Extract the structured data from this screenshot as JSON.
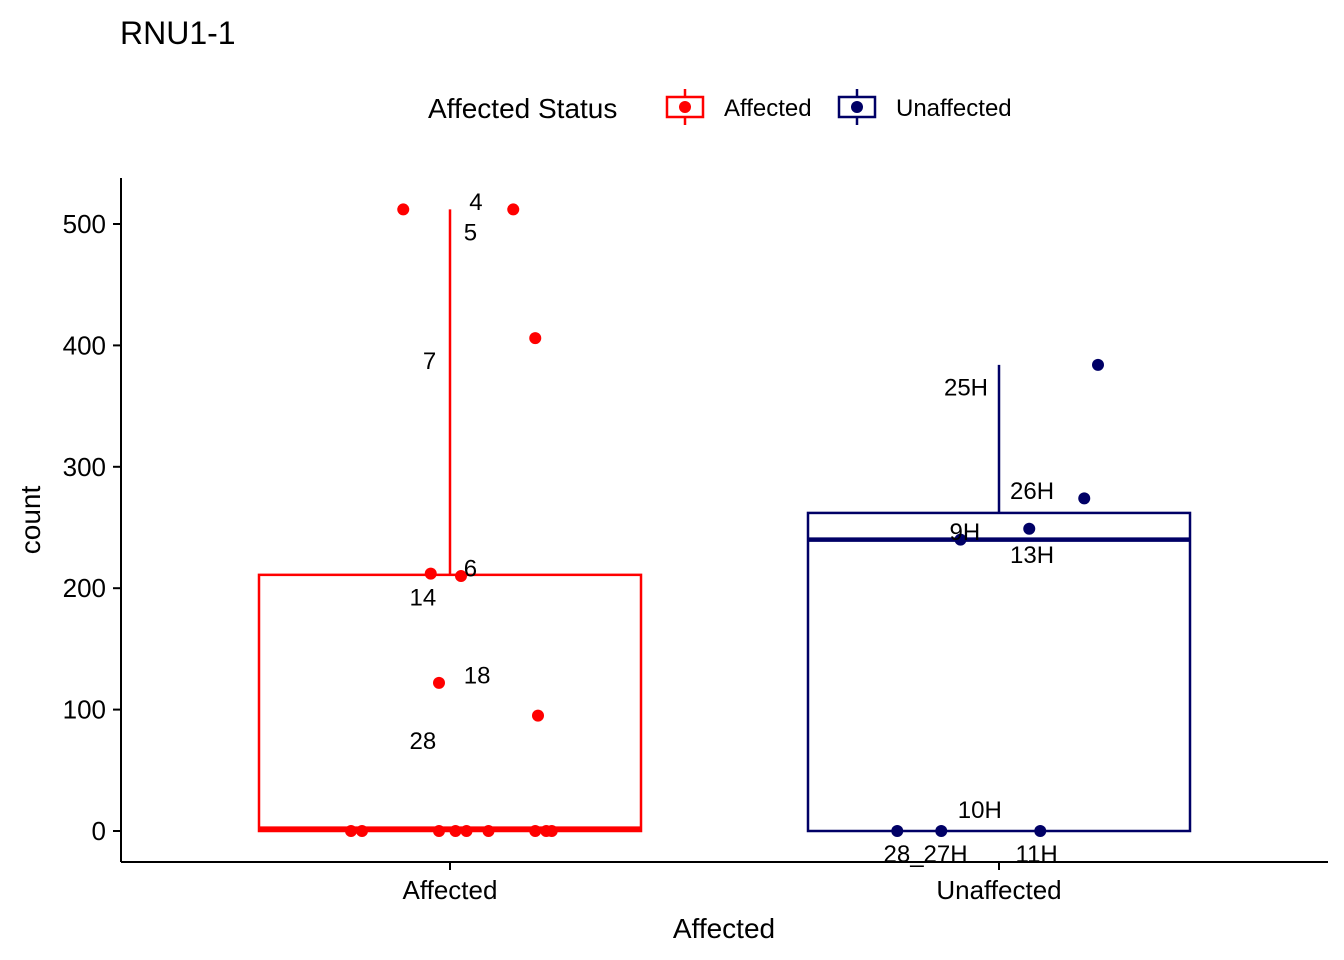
{
  "chart_data": {
    "type": "box",
    "title": "RNU1-1",
    "xlabel": "Affected",
    "ylabel": "count",
    "ylim": [
      -25,
      535
    ],
    "yticks": [
      0,
      100,
      200,
      300,
      400,
      500
    ],
    "categories": [
      "Affected",
      "Unaffected"
    ],
    "legend": {
      "title": "Affected Status",
      "position": "top",
      "entries": [
        {
          "label": "Affected",
          "color": "#ff0000"
        },
        {
          "label": "Unaffected",
          "color": "#000066"
        }
      ]
    },
    "grid": false,
    "series": [
      {
        "name": "Affected",
        "color": "#ff0000",
        "box": {
          "min": 0,
          "q1": 0,
          "median": 2,
          "q3": 211,
          "max": 512
        },
        "points": [
          {
            "x": -0.085,
            "y": 512,
            "label": "4",
            "lx": 0.035,
            "ly": 519,
            "anchor": "start"
          },
          {
            "x": 0.115,
            "y": 512,
            "label": "5",
            "lx": 0.025,
            "ly": 494,
            "anchor": "start"
          },
          {
            "x": 0.155,
            "y": 406,
            "label": "7",
            "lx": -0.025,
            "ly": 388,
            "anchor": "end"
          },
          {
            "x": -0.035,
            "y": 212,
            "label": "14",
            "lx": -0.025,
            "ly": 193,
            "anchor": "end"
          },
          {
            "x": 0.02,
            "y": 210,
            "label": "6",
            "lx": 0.025,
            "ly": 217,
            "anchor": "start"
          },
          {
            "x": -0.02,
            "y": 122,
            "label": "18",
            "lx": 0.025,
            "ly": 129,
            "anchor": "start"
          },
          {
            "x": 0.16,
            "y": 95,
            "label": "28",
            "lx": -0.025,
            "ly": 75,
            "anchor": "end"
          },
          {
            "x": -0.18,
            "y": 0
          },
          {
            "x": -0.16,
            "y": 0
          },
          {
            "x": -0.02,
            "y": 0
          },
          {
            "x": 0.01,
            "y": 0
          },
          {
            "x": 0.03,
            "y": 0
          },
          {
            "x": 0.07,
            "y": 0
          },
          {
            "x": 0.155,
            "y": 0
          },
          {
            "x": 0.175,
            "y": 0
          },
          {
            "x": 0.185,
            "y": 0
          }
        ]
      },
      {
        "name": "Unaffected",
        "color": "#000066",
        "box": {
          "min": 0,
          "q1": 0,
          "median": 240,
          "q3": 262,
          "max": 384
        },
        "points": [
          {
            "x": 0.18,
            "y": 384,
            "label": "25H",
            "lx": -0.02,
            "ly": 366,
            "anchor": "end"
          },
          {
            "x": 0.155,
            "y": 274,
            "label": "26H",
            "lx": 0.02,
            "ly": 281,
            "anchor": "start"
          },
          {
            "x": 0.055,
            "y": 249,
            "label": "13H",
            "lx": 0.02,
            "ly": 228,
            "anchor": "start"
          },
          {
            "x": -0.07,
            "y": 240,
            "label": "9H",
            "lx": -0.09,
            "ly": 247,
            "anchor": "start"
          },
          {
            "x": -0.185,
            "y": 0,
            "label": "28_27H",
            "lx": -0.21,
            "ly": -18,
            "anchor": "start"
          },
          {
            "x": -0.105,
            "y": 0,
            "label": "10H",
            "lx": -0.075,
            "ly": 18,
            "anchor": "start"
          },
          {
            "x": 0.075,
            "y": 0,
            "label": "11H",
            "lx": 0.03,
            "ly": -18,
            "anchor": "start"
          }
        ]
      }
    ]
  }
}
